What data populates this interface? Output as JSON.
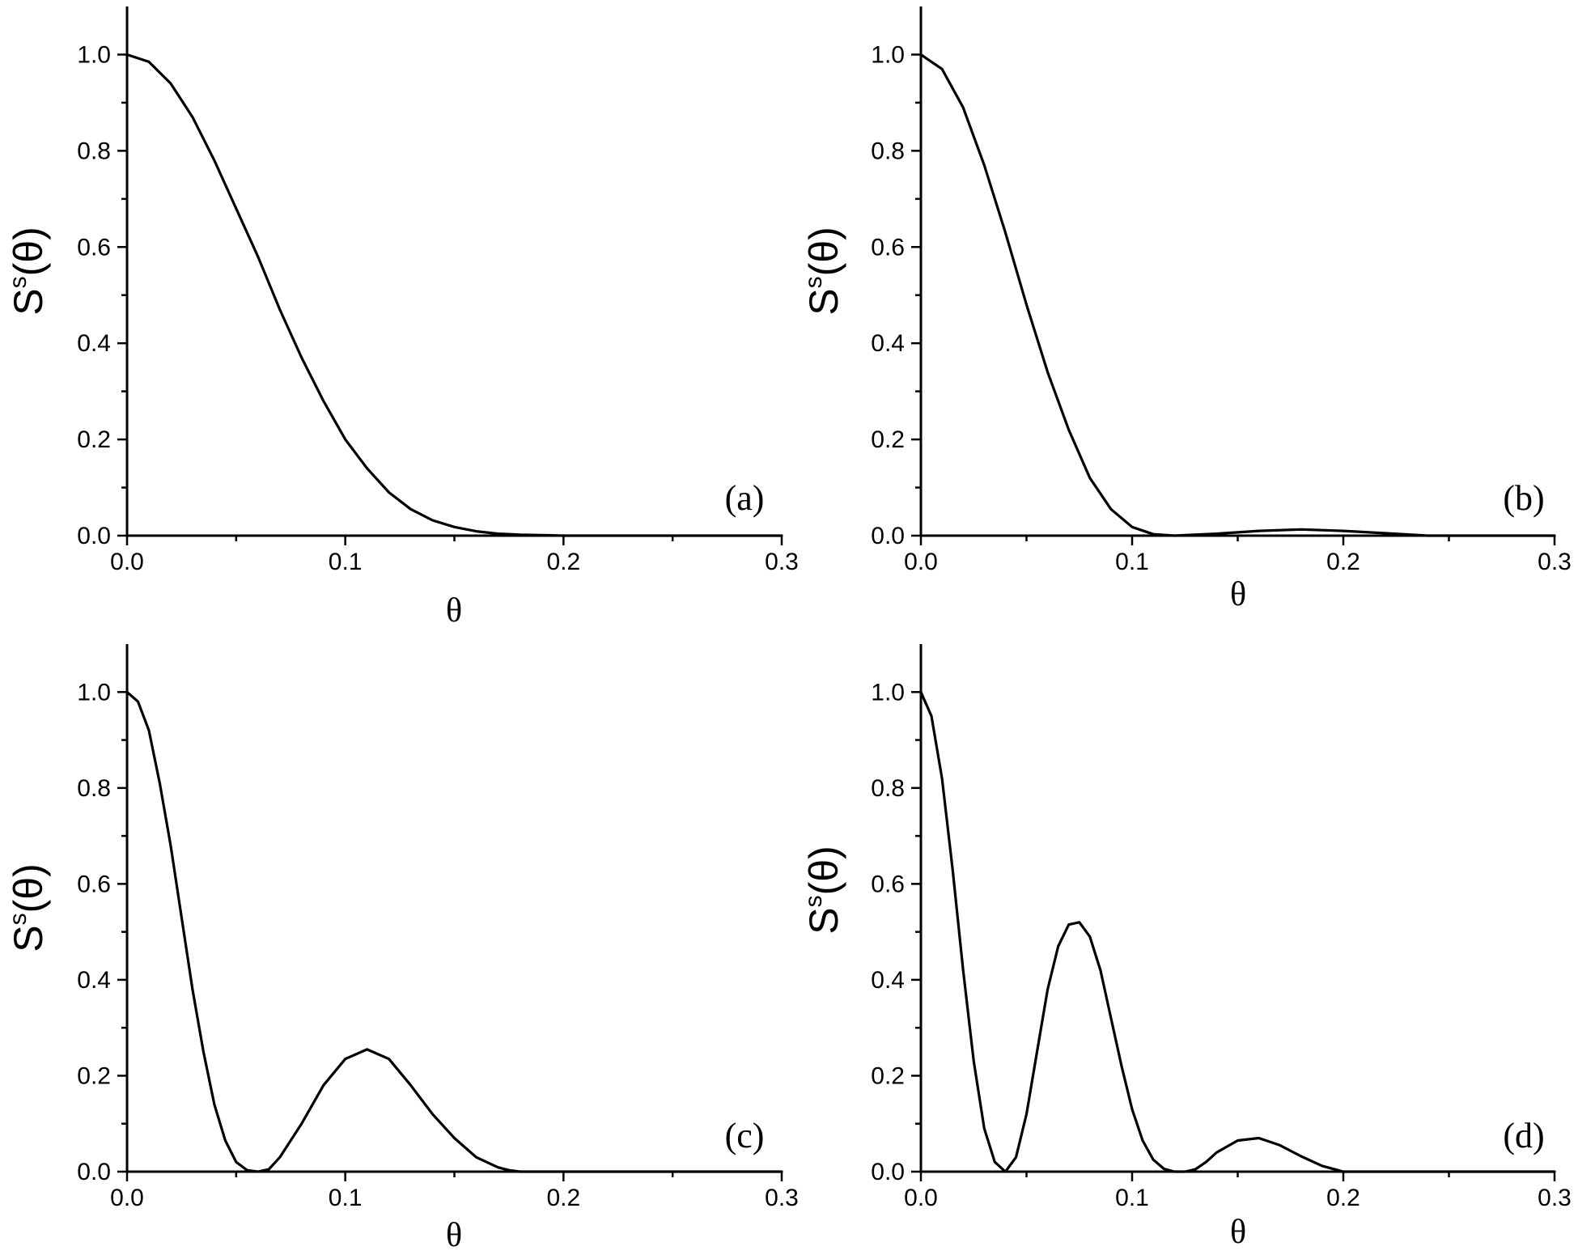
{
  "chart_data": [
    {
      "panel": "(a)",
      "type": "line",
      "xlabel": "θ",
      "ylabel": {
        "base": "S",
        "sup": "s",
        "arg": "(θ)"
      },
      "xlim": [
        0,
        0.3
      ],
      "ylim": [
        0,
        1.1
      ],
      "xticks": [
        "0.0",
        "0.1",
        "0.2",
        "0.3"
      ],
      "yticks": [
        "0.0",
        "0.2",
        "0.4",
        "0.6",
        "0.8",
        "1.0"
      ],
      "grid": false,
      "series": [
        {
          "x": [
            0.0,
            0.01,
            0.02,
            0.03,
            0.04,
            0.05,
            0.06,
            0.07,
            0.08,
            0.09,
            0.1,
            0.11,
            0.12,
            0.13,
            0.14,
            0.15,
            0.16,
            0.17,
            0.18,
            0.19,
            0.2,
            0.22,
            0.25,
            0.3
          ],
          "y": [
            1.0,
            0.985,
            0.94,
            0.87,
            0.78,
            0.68,
            0.58,
            0.47,
            0.37,
            0.28,
            0.2,
            0.14,
            0.09,
            0.055,
            0.032,
            0.018,
            0.009,
            0.004,
            0.002,
            0.001,
            0.0,
            0.0,
            0.0,
            0.0
          ]
        }
      ]
    },
    {
      "panel": "(b)",
      "type": "line",
      "xlabel": "θ",
      "ylabel": {
        "base": "S",
        "sup": "s",
        "arg": "(θ)"
      },
      "xlim": [
        0,
        0.3
      ],
      "ylim": [
        0,
        1.1
      ],
      "xticks": [
        "0.0",
        "0.1",
        "0.2",
        "0.3"
      ],
      "yticks": [
        "0.0",
        "0.2",
        "0.4",
        "0.6",
        "0.8",
        "1.0"
      ],
      "grid": false,
      "series": [
        {
          "x": [
            0.0,
            0.01,
            0.02,
            0.03,
            0.04,
            0.05,
            0.06,
            0.07,
            0.08,
            0.09,
            0.1,
            0.11,
            0.12,
            0.14,
            0.16,
            0.18,
            0.2,
            0.22,
            0.24,
            0.26,
            0.3
          ],
          "y": [
            1.0,
            0.97,
            0.89,
            0.77,
            0.63,
            0.48,
            0.34,
            0.22,
            0.12,
            0.055,
            0.018,
            0.003,
            0.0,
            0.004,
            0.01,
            0.013,
            0.01,
            0.005,
            0.0,
            0.0,
            0.0
          ]
        }
      ]
    },
    {
      "panel": "(c)",
      "type": "line",
      "xlabel": "θ",
      "ylabel": {
        "base": "S",
        "sup": "s",
        "arg": "(θ)"
      },
      "xlim": [
        0,
        0.3
      ],
      "ylim": [
        0,
        1.1
      ],
      "xticks": [
        "0.0",
        "0.1",
        "0.2",
        "0.3"
      ],
      "yticks": [
        "0.0",
        "0.2",
        "0.4",
        "0.6",
        "0.8",
        "1.0"
      ],
      "grid": false,
      "series": [
        {
          "x": [
            0.0,
            0.005,
            0.01,
            0.015,
            0.02,
            0.025,
            0.03,
            0.035,
            0.04,
            0.045,
            0.05,
            0.055,
            0.06,
            0.065,
            0.07,
            0.08,
            0.09,
            0.1,
            0.11,
            0.12,
            0.13,
            0.14,
            0.15,
            0.16,
            0.17,
            0.175,
            0.18,
            0.2,
            0.25,
            0.3
          ],
          "y": [
            1.0,
            0.98,
            0.92,
            0.81,
            0.68,
            0.53,
            0.38,
            0.25,
            0.14,
            0.065,
            0.02,
            0.003,
            0.0,
            0.005,
            0.03,
            0.1,
            0.18,
            0.235,
            0.255,
            0.235,
            0.18,
            0.12,
            0.07,
            0.03,
            0.009,
            0.003,
            0.0,
            0.0,
            0.0,
            0.0
          ]
        }
      ]
    },
    {
      "panel": "(d)",
      "type": "line",
      "xlabel": "θ",
      "ylabel": {
        "base": "S",
        "sup": "s",
        "arg": "(θ)"
      },
      "xlim": [
        0,
        0.3
      ],
      "ylim": [
        0,
        1.1
      ],
      "xticks": [
        "0.0",
        "0.1",
        "0.2",
        "0.3"
      ],
      "yticks": [
        "0.0",
        "0.2",
        "0.4",
        "0.6",
        "0.8",
        "1.0"
      ],
      "grid": false,
      "series": [
        {
          "x": [
            0.0,
            0.005,
            0.01,
            0.015,
            0.02,
            0.025,
            0.03,
            0.035,
            0.04,
            0.045,
            0.05,
            0.055,
            0.06,
            0.065,
            0.07,
            0.075,
            0.08,
            0.085,
            0.09,
            0.095,
            0.1,
            0.105,
            0.11,
            0.115,
            0.12,
            0.125,
            0.13,
            0.135,
            0.14,
            0.15,
            0.16,
            0.17,
            0.18,
            0.19,
            0.2,
            0.25,
            0.3
          ],
          "y": [
            1.0,
            0.95,
            0.82,
            0.63,
            0.42,
            0.23,
            0.09,
            0.02,
            0.0,
            0.03,
            0.12,
            0.25,
            0.38,
            0.47,
            0.515,
            0.52,
            0.49,
            0.42,
            0.32,
            0.22,
            0.13,
            0.065,
            0.025,
            0.006,
            0.0,
            0.0,
            0.005,
            0.02,
            0.04,
            0.065,
            0.07,
            0.055,
            0.032,
            0.012,
            0.0,
            0.0,
            0.0
          ]
        }
      ]
    }
  ]
}
